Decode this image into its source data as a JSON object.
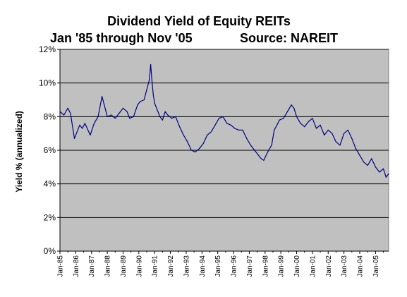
{
  "chart_data": {
    "type": "line",
    "title": "Dividend Yield of Equity REITs",
    "subtitle": "Jan '85 through Nov '05",
    "source": "Source:  NAREIT",
    "xlabel": "",
    "ylabel": "Yield % (annualized)",
    "ylim": [
      0,
      12
    ],
    "yticks": [
      0,
      2,
      4,
      6,
      8,
      10,
      12
    ],
    "ytick_labels": [
      "0%",
      "2%",
      "4%",
      "6%",
      "8%",
      "10%",
      "12%"
    ],
    "xlim": [
      "1985-01",
      "2005-11"
    ],
    "xtick_labels": [
      "Jan-85",
      "Jan-86",
      "Jan-87",
      "Jan-88",
      "Jan-89",
      "Jan-90",
      "Jan-91",
      "Jan-92",
      "Jan-93",
      "Jan-94",
      "Jan-95",
      "Jan-96",
      "Jan-97",
      "Jan-98",
      "Jan-99",
      "Jan-00",
      "Jan-01",
      "Jan-02",
      "Jan-03",
      "Jan-04",
      "Jan-05"
    ],
    "grid": true,
    "legend": "none",
    "colors": {
      "plot_background": "#c0c0c0",
      "line": "#000080",
      "gridline": "#000000"
    },
    "series": [
      {
        "x": [
          "1985-01",
          "1985-04",
          "1985-07",
          "1985-09",
          "1985-12",
          "1986-04",
          "1986-06",
          "1986-08",
          "1986-12",
          "1987-03",
          "1987-06",
          "1987-09",
          "1987-11",
          "1988-01",
          "1988-04",
          "1988-07",
          "1988-10",
          "1989-01",
          "1989-04",
          "1989-06",
          "1989-09",
          "1989-12",
          "1990-02",
          "1990-05",
          "1990-07",
          "1990-09",
          "1990-10",
          "1990-11",
          "1990-12",
          "1991-01",
          "1991-03",
          "1991-05",
          "1991-07",
          "1991-09",
          "1991-11",
          "1992-02",
          "1992-05",
          "1992-08",
          "1992-11",
          "1993-02",
          "1993-05",
          "1993-08",
          "1993-11",
          "1994-02",
          "1994-05",
          "1994-08",
          "1994-11",
          "1995-02",
          "1995-05",
          "1995-08",
          "1995-11",
          "1996-02",
          "1996-05",
          "1996-08",
          "1996-11",
          "1997-02",
          "1997-05",
          "1997-08",
          "1997-10",
          "1997-12",
          "1998-03",
          "1998-06",
          "1998-08",
          "1998-10",
          "1998-12",
          "1999-03",
          "1999-06",
          "1999-09",
          "1999-11",
          "2000-01",
          "2000-04",
          "2000-07",
          "2000-10",
          "2001-01",
          "2001-04",
          "2001-07",
          "2001-10",
          "2002-01",
          "2002-04",
          "2002-07",
          "2002-10",
          "2003-01",
          "2003-04",
          "2003-07",
          "2003-10",
          "2004-01",
          "2004-04",
          "2004-07",
          "2004-10",
          "2005-01",
          "2005-04",
          "2005-07",
          "2005-09",
          "2005-11"
        ],
        "values": [
          8.3,
          8.1,
          8.5,
          8.2,
          6.7,
          7.5,
          7.3,
          7.6,
          6.9,
          7.6,
          8.0,
          9.2,
          8.6,
          8.0,
          8.1,
          7.9,
          8.2,
          8.5,
          8.3,
          7.9,
          8.0,
          8.7,
          8.9,
          9.0,
          9.6,
          10.2,
          11.1,
          10.1,
          9.3,
          8.8,
          8.4,
          8.0,
          7.8,
          8.3,
          8.1,
          7.9,
          8.0,
          7.4,
          6.9,
          6.5,
          6.0,
          5.9,
          6.1,
          6.4,
          6.9,
          7.1,
          7.5,
          7.9,
          8.0,
          7.6,
          7.5,
          7.3,
          7.2,
          7.2,
          6.7,
          6.3,
          6.0,
          5.7,
          5.5,
          5.4,
          5.9,
          6.3,
          7.2,
          7.5,
          7.8,
          7.9,
          8.3,
          8.7,
          8.5,
          8.0,
          7.6,
          7.4,
          7.7,
          7.9,
          7.3,
          7.5,
          6.9,
          7.2,
          7.0,
          6.5,
          6.3,
          7.0,
          7.2,
          6.7,
          6.1,
          5.7,
          5.3,
          5.1,
          5.5,
          5.0,
          4.7,
          4.9,
          4.4,
          4.6
        ]
      }
    ]
  }
}
